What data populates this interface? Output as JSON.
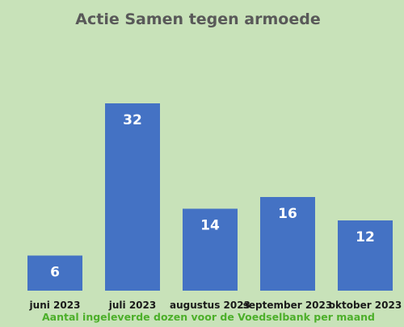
{
  "colors": {
    "background": "#c8e2b9",
    "bar": "#4472c4",
    "title": "#595959",
    "xlabel": "#4caf2a",
    "data_label": "#ffffff"
  },
  "chart_data": {
    "type": "bar",
    "title": "Actie Samen tegen armoede",
    "xlabel": "Aantal ingeleverde dozen voor de Voedselbank per maand",
    "ylabel": "",
    "categories": [
      "juni 2023",
      "juli 2023",
      "augustus 2023",
      "september 2023",
      "oktober 2023"
    ],
    "values": [
      6,
      32,
      14,
      16,
      12
    ],
    "ylim": [
      0,
      40
    ],
    "grid": false,
    "legend": "none",
    "data_labels": true
  }
}
